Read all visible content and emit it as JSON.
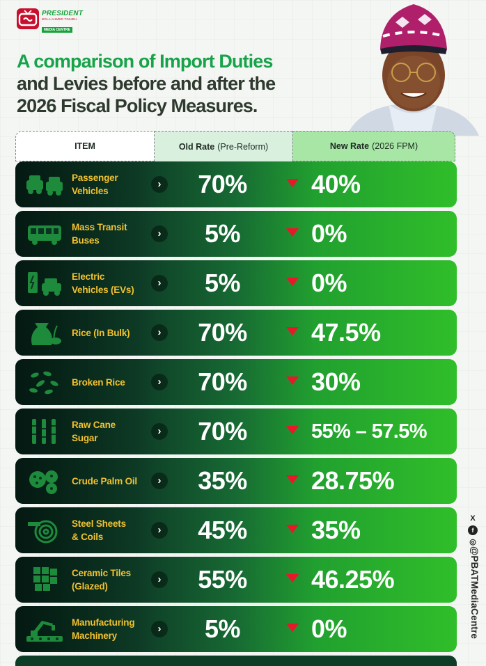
{
  "brand": {
    "line1": "PRESIDENT",
    "line2": "BOLA AHMED TINUBU",
    "line3": "MEDIA CENTRE",
    "colors": {
      "green": "#17a34a",
      "red": "#c8102e",
      "gold": "#f2c230"
    }
  },
  "headline": {
    "line1": "A comparison of Import Duties",
    "line2": "and Levies before and after the",
    "line3": "2026 Fiscal Policy Measures."
  },
  "table": {
    "headers": {
      "item": "ITEM",
      "old_bold": "Old Rate",
      "old_note": "(Pre-Reform)",
      "new_bold": "New Rate",
      "new_note": "(2026 FPM)"
    },
    "rows": [
      {
        "line1": "Passenger",
        "line2": "Vehicles",
        "old": "70%",
        "new": "40%",
        "icon": "cars-icon"
      },
      {
        "line1": "Mass Transit",
        "line2": "Buses",
        "old": "5%",
        "new": "0%",
        "icon": "bus-icon"
      },
      {
        "line1": "Electric",
        "line2": "Vehicles (EVs)",
        "old": "5%",
        "new": "0%",
        "icon": "ev-charger-icon"
      },
      {
        "line1": "Rice (In Bulk)",
        "line2": "",
        "old": "70%",
        "new": "47.5%",
        "icon": "rice-sack-icon"
      },
      {
        "line1": "Broken Rice",
        "line2": "",
        "old": "70%",
        "new": "30%",
        "icon": "rice-grains-icon"
      },
      {
        "line1": "Raw Cane",
        "line2": "Sugar",
        "old": "70%",
        "new": "55% – 57.5%",
        "icon": "sugar-cane-icon"
      },
      {
        "line1": "Crude Palm Oil",
        "line2": "",
        "old": "35%",
        "new": "28.75%",
        "icon": "palm-fruit-icon"
      },
      {
        "line1": "Steel Sheets",
        "line2": "& Coils",
        "old": "45%",
        "new": "35%",
        "icon": "steel-coil-icon"
      },
      {
        "line1": "Ceramic Tiles",
        "line2": "(Glazed)",
        "old": "55%",
        "new": "46.25%",
        "icon": "tiles-icon"
      },
      {
        "line1": "Manufacturing",
        "line2": "Machinery",
        "old": "5%",
        "new": "0%",
        "icon": "robot-arm-icon"
      }
    ],
    "arrow_glyph": "›"
  },
  "social": {
    "x_glyph": "X",
    "fb_glyph": "f",
    "ig_glyph": "◎",
    "handle": "@PBATMediaCentre"
  }
}
